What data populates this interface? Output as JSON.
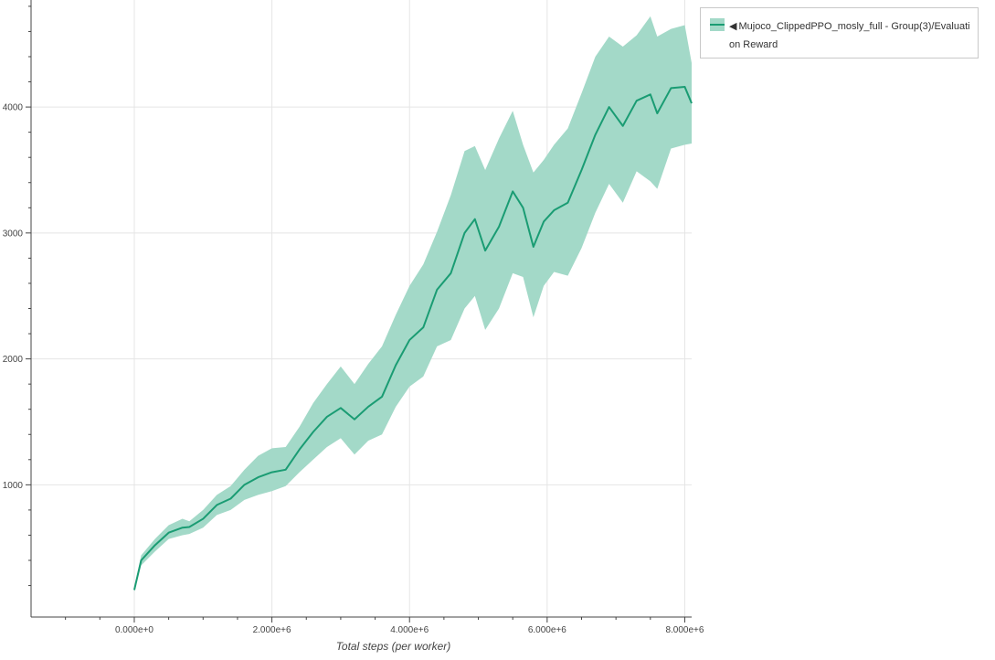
{
  "chart_data": {
    "type": "line",
    "title": "",
    "xlabel": "Total steps (per worker)",
    "ylabel": "",
    "xlim": [
      -1500000,
      8100000
    ],
    "ylim": [
      -50,
      4850
    ],
    "x_ticks": [
      0,
      2000000,
      4000000,
      6000000,
      8000000
    ],
    "x_tick_labels": [
      "0.000e+0",
      "2.000e+6",
      "4.000e+6",
      "6.000e+6",
      "8.000e+6"
    ],
    "y_ticks": [
      1000,
      2000,
      3000,
      4000
    ],
    "y_tick_labels": [
      "1000",
      "2000",
      "3000",
      "4000"
    ],
    "grid": true,
    "legend_position": "outside-top-right",
    "series": [
      {
        "name": "Mujoco_ClippedPPO_mosly_full - Group(3)/Evaluation Reward",
        "color": "#1a9c73",
        "band_color": "#a3d9c8",
        "x": [
          0,
          100000,
          300000,
          500000,
          700000,
          800000,
          1000000,
          1200000,
          1400000,
          1600000,
          1800000,
          2000000,
          2200000,
          2400000,
          2600000,
          2800000,
          3000000,
          3200000,
          3400000,
          3600000,
          3800000,
          4000000,
          4200000,
          4400000,
          4600000,
          4800000,
          4950000,
          5100000,
          5300000,
          5500000,
          5650000,
          5800000,
          5950000,
          6100000,
          6300000,
          6500000,
          6700000,
          6900000,
          7100000,
          7300000,
          7500000,
          7600000,
          7800000,
          8000000,
          8100000
        ],
        "mean": [
          165,
          400,
          520,
          620,
          660,
          665,
          730,
          840,
          890,
          1000,
          1060,
          1100,
          1120,
          1280,
          1420,
          1540,
          1610,
          1520,
          1620,
          1700,
          1950,
          2150,
          2250,
          2550,
          2680,
          3000,
          3110,
          2860,
          3050,
          3330,
          3200,
          2890,
          3090,
          3180,
          3240,
          3500,
          3780,
          4000,
          3850,
          4050,
          4100,
          3950,
          4150,
          4160,
          4030
        ],
        "upper": [
          180,
          440,
          570,
          680,
          730,
          710,
          800,
          920,
          990,
          1120,
          1230,
          1290,
          1300,
          1460,
          1650,
          1800,
          1940,
          1800,
          1960,
          2100,
          2350,
          2580,
          2750,
          3010,
          3300,
          3650,
          3690,
          3500,
          3750,
          3970,
          3700,
          3480,
          3580,
          3700,
          3830,
          4110,
          4400,
          4560,
          4480,
          4570,
          4720,
          4560,
          4620,
          4650,
          4350
        ],
        "lower": [
          150,
          360,
          470,
          570,
          600,
          610,
          660,
          760,
          800,
          880,
          920,
          950,
          990,
          1100,
          1200,
          1300,
          1370,
          1240,
          1350,
          1400,
          1620,
          1780,
          1860,
          2100,
          2150,
          2400,
          2500,
          2230,
          2400,
          2680,
          2650,
          2330,
          2580,
          2690,
          2660,
          2880,
          3160,
          3390,
          3240,
          3490,
          3410,
          3350,
          3670,
          3700,
          3710
        ]
      }
    ]
  },
  "legend": {
    "arrow": "◀",
    "label": "Mujoco_ClippedPPO_mosly_full - Group(3)/Evaluation Reward"
  }
}
